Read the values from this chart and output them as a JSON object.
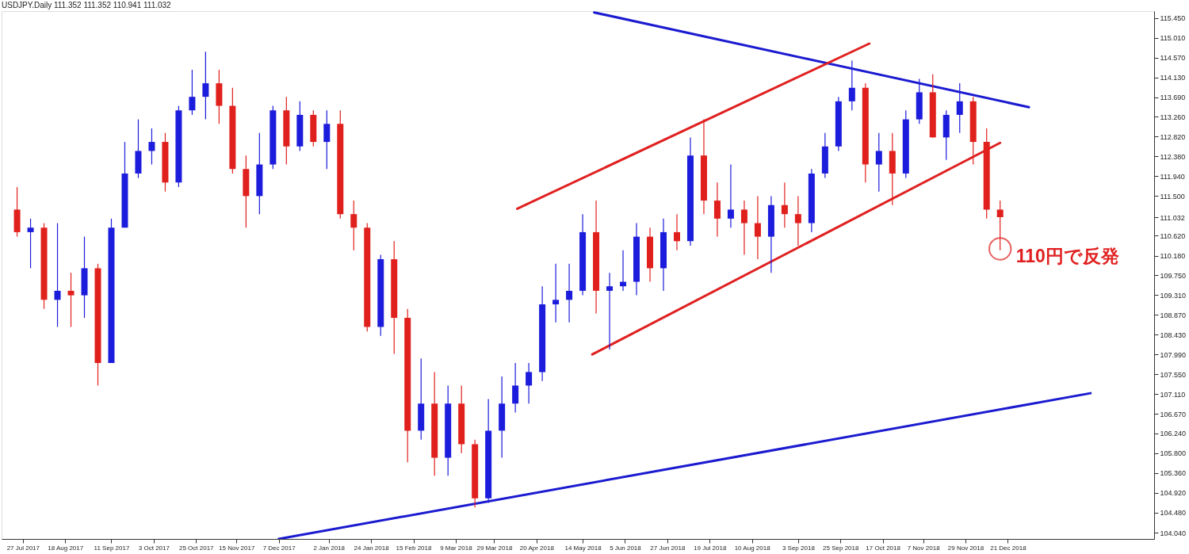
{
  "chart_data": {
    "type": "candlestick",
    "title": "USDJPY.Daily  111.352 111.352 110.941 111.032",
    "x": [
      "2017-07-24",
      "2017-07-31",
      "2017-08-07",
      "2017-08-14",
      "2017-08-21",
      "2017-08-28",
      "2017-09-04",
      "2017-09-11",
      "2017-09-18",
      "2017-09-25",
      "2017-10-02",
      "2017-10-09",
      "2017-10-16",
      "2017-10-23",
      "2017-10-30",
      "2017-11-06",
      "2017-11-13",
      "2017-11-20",
      "2017-11-27",
      "2017-12-04",
      "2017-12-11",
      "2017-12-18",
      "2017-12-25",
      "2018-01-01",
      "2018-01-08",
      "2018-01-15",
      "2018-01-22",
      "2018-01-29",
      "2018-02-05",
      "2018-02-12",
      "2018-02-19",
      "2018-02-26",
      "2018-03-05",
      "2018-03-12",
      "2018-03-19",
      "2018-03-26",
      "2018-04-02",
      "2018-04-09",
      "2018-04-16",
      "2018-04-23",
      "2018-04-30",
      "2018-05-07",
      "2018-05-14",
      "2018-05-21",
      "2018-05-28",
      "2018-06-04",
      "2018-06-11",
      "2018-06-18",
      "2018-06-25",
      "2018-07-02",
      "2018-07-09",
      "2018-07-16",
      "2018-07-23",
      "2018-07-30",
      "2018-08-06",
      "2018-08-13",
      "2018-08-20",
      "2018-08-27",
      "2018-09-03",
      "2018-09-10",
      "2018-09-17",
      "2018-09-24",
      "2018-10-01",
      "2018-10-08",
      "2018-10-15",
      "2018-10-22",
      "2018-10-29",
      "2018-11-05",
      "2018-11-12",
      "2018-11-19",
      "2018-11-26",
      "2018-12-03",
      "2018-12-10",
      "2018-12-17"
    ],
    "ohlc": [
      [
        111.2,
        111.7,
        110.6,
        110.7
      ],
      [
        110.7,
        111.0,
        109.9,
        110.8
      ],
      [
        110.8,
        110.9,
        109.0,
        109.2
      ],
      [
        109.2,
        110.9,
        108.6,
        109.4
      ],
      [
        109.4,
        109.8,
        108.6,
        109.3
      ],
      [
        109.3,
        110.6,
        108.8,
        109.9
      ],
      [
        109.9,
        110.0,
        107.3,
        107.8
      ],
      [
        107.8,
        111.0,
        107.8,
        110.8
      ],
      [
        110.8,
        112.7,
        110.8,
        112.0
      ],
      [
        112.0,
        113.2,
        111.9,
        112.5
      ],
      [
        112.5,
        113.0,
        112.2,
        112.7
      ],
      [
        112.7,
        112.9,
        111.6,
        111.8
      ],
      [
        111.8,
        113.5,
        111.7,
        113.4
      ],
      [
        113.4,
        114.3,
        113.3,
        113.7
      ],
      [
        113.7,
        114.7,
        113.2,
        114.0
      ],
      [
        114.0,
        114.3,
        113.1,
        113.5
      ],
      [
        113.5,
        113.9,
        112.0,
        112.1
      ],
      [
        112.1,
        112.4,
        110.8,
        111.5
      ],
      [
        111.5,
        112.9,
        111.1,
        112.2
      ],
      [
        112.2,
        113.5,
        112.1,
        113.4
      ],
      [
        113.4,
        113.7,
        112.2,
        112.6
      ],
      [
        112.6,
        113.6,
        112.5,
        113.3
      ],
      [
        113.3,
        113.4,
        112.6,
        112.7
      ],
      [
        112.7,
        113.4,
        112.1,
        113.1
      ],
      [
        113.1,
        113.4,
        111.0,
        111.1
      ],
      [
        111.1,
        111.4,
        110.3,
        110.8
      ],
      [
        110.8,
        110.9,
        108.5,
        108.6
      ],
      [
        108.6,
        110.2,
        108.4,
        110.1
      ],
      [
        110.1,
        110.5,
        108.0,
        108.8
      ],
      [
        108.8,
        109.0,
        105.6,
        106.3
      ],
      [
        106.3,
        107.9,
        106.1,
        106.9
      ],
      [
        106.9,
        107.6,
        105.3,
        105.7
      ],
      [
        105.7,
        107.3,
        105.3,
        106.9
      ],
      [
        106.9,
        107.3,
        105.8,
        106.0
      ],
      [
        106.0,
        106.1,
        104.6,
        104.8
      ],
      [
        104.8,
        107.0,
        104.7,
        106.3
      ],
      [
        106.3,
        107.5,
        105.7,
        106.9
      ],
      [
        106.9,
        107.8,
        106.7,
        107.3
      ],
      [
        107.3,
        107.8,
        106.9,
        107.6
      ],
      [
        107.6,
        109.5,
        107.4,
        109.1
      ],
      [
        109.1,
        110.0,
        108.7,
        109.2
      ],
      [
        109.2,
        110.0,
        108.7,
        109.4
      ],
      [
        109.4,
        111.1,
        109.3,
        110.7
      ],
      [
        110.7,
        111.4,
        108.9,
        109.4
      ],
      [
        109.4,
        109.8,
        108.1,
        109.5
      ],
      [
        109.5,
        110.3,
        109.4,
        109.6
      ],
      [
        109.6,
        110.9,
        109.3,
        110.6
      ],
      [
        110.6,
        110.8,
        109.6,
        109.9
      ],
      [
        109.9,
        111.0,
        109.4,
        110.7
      ],
      [
        110.7,
        111.1,
        110.3,
        110.5
      ],
      [
        110.5,
        112.8,
        110.4,
        112.4
      ],
      [
        112.4,
        113.2,
        111.1,
        111.4
      ],
      [
        111.4,
        111.8,
        110.6,
        111.0
      ],
      [
        111.0,
        112.2,
        110.8,
        111.2
      ],
      [
        111.2,
        111.4,
        110.2,
        110.9
      ],
      [
        110.9,
        111.5,
        110.1,
        110.6
      ],
      [
        110.6,
        111.5,
        109.8,
        111.3
      ],
      [
        111.3,
        111.8,
        110.8,
        111.1
      ],
      [
        111.1,
        111.5,
        110.4,
        110.9
      ],
      [
        110.9,
        112.1,
        110.7,
        112.0
      ],
      [
        112.0,
        112.9,
        111.9,
        112.6
      ],
      [
        112.6,
        113.7,
        112.5,
        113.6
      ],
      [
        113.6,
        114.5,
        113.4,
        113.9
      ],
      [
        113.9,
        114.0,
        111.8,
        112.2
      ],
      [
        112.2,
        112.9,
        111.6,
        112.5
      ],
      [
        112.5,
        112.9,
        111.3,
        112.0
      ],
      [
        112.0,
        113.4,
        111.9,
        113.2
      ],
      [
        113.2,
        114.1,
        113.1,
        113.8
      ],
      [
        113.8,
        114.2,
        112.8,
        112.8
      ],
      [
        112.8,
        113.4,
        112.3,
        113.3
      ],
      [
        113.3,
        114.0,
        112.9,
        113.6
      ],
      [
        113.6,
        113.7,
        112.2,
        112.7
      ],
      [
        112.7,
        113.0,
        111.0,
        111.2
      ],
      [
        111.2,
        111.4,
        110.3,
        111.032
      ]
    ],
    "colors": [
      "#e0201c",
      "#1c1cdc",
      "#e0201c",
      "#1c1cdc",
      "#e0201c",
      "#1c1cdc",
      "#e0201c",
      "#1c1cdc",
      "#1c1cdc",
      "#1c1cdc",
      "#1c1cdc",
      "#e0201c",
      "#1c1cdc",
      "#1c1cdc",
      "#1c1cdc",
      "#e0201c",
      "#e0201c",
      "#e0201c",
      "#1c1cdc",
      "#1c1cdc",
      "#e0201c",
      "#1c1cdc",
      "#e0201c",
      "#1c1cdc",
      "#e0201c",
      "#e0201c",
      "#e0201c",
      "#1c1cdc",
      "#e0201c",
      "#e0201c",
      "#1c1cdc",
      "#e0201c",
      "#1c1cdc",
      "#e0201c",
      "#e0201c",
      "#1c1cdc",
      "#1c1cdc",
      "#1c1cdc",
      "#1c1cdc",
      "#1c1cdc",
      "#1c1cdc",
      "#1c1cdc",
      "#1c1cdc",
      "#e0201c",
      "#1c1cdc",
      "#1c1cdc",
      "#1c1cdc",
      "#e0201c",
      "#1c1cdc",
      "#e0201c",
      "#1c1cdc",
      "#e0201c",
      "#e0201c",
      "#1c1cdc",
      "#e0201c",
      "#e0201c",
      "#1c1cdc",
      "#e0201c",
      "#e0201c",
      "#1c1cdc",
      "#1c1cdc",
      "#1c1cdc",
      "#1c1cdc",
      "#e0201c",
      "#1c1cdc",
      "#e0201c",
      "#1c1cdc",
      "#1c1cdc",
      "#e0201c",
      "#1c1cdc",
      "#1c1cdc",
      "#e0201c",
      "#e0201c",
      "#e0201c"
    ],
    "series": [
      {
        "type": "line",
        "color": "#1a1ad0",
        "x": [
          "2018-05-20",
          "2019-01-01"
        ],
        "values": [
          115.57,
          113.47
        ]
      },
      {
        "type": "line",
        "color": "#e02020",
        "x": [
          "2018-04-10",
          "2018-10-10"
        ],
        "values": [
          111.22,
          114.88
        ]
      },
      {
        "type": "line",
        "color": "#e02020",
        "x": [
          "2018-05-19",
          "2018-12-17"
        ],
        "values": [
          107.99,
          112.68
        ]
      },
      {
        "type": "line",
        "color": "#1a1ad0",
        "x": [
          "2017-12-07",
          "2019-02-02"
        ],
        "values": [
          103.9,
          107.13
        ]
      }
    ],
    "annotations": [
      {
        "text": "110円で反発",
        "x": "2018-12-17",
        "y": 110.33
      }
    ],
    "xlim": [
      "2017-07-18",
      "2019-03-05"
    ],
    "xticks": [
      {
        "value": "2017-07-27",
        "label": "27 Jul 2017"
      },
      {
        "value": "2017-08-18",
        "label": "18 Aug 2017"
      },
      {
        "value": "2017-09-11",
        "label": "11 Sep 2017"
      },
      {
        "value": "2017-10-03",
        "label": "3 Oct 2017"
      },
      {
        "value": "2017-10-25",
        "label": "25 Oct 2017"
      },
      {
        "value": "2017-11-15",
        "label": "15 Nov 2017"
      },
      {
        "value": "2017-12-07",
        "label": "7 Dec 2017"
      },
      {
        "value": "2018-01-02",
        "label": "2 Jan 2018"
      },
      {
        "value": "2018-01-24",
        "label": "24 Jan 2018"
      },
      {
        "value": "2018-02-15",
        "label": "15 Feb 2018"
      },
      {
        "value": "2018-03-09",
        "label": "9 Mar 2018"
      },
      {
        "value": "2018-03-29",
        "label": "29 Mar 2018"
      },
      {
        "value": "2018-04-20",
        "label": "20 Apr 2018"
      },
      {
        "value": "2018-05-14",
        "label": "14 May 2018"
      },
      {
        "value": "2018-06-05",
        "label": "5 Jun 2018"
      },
      {
        "value": "2018-06-27",
        "label": "27 Jun 2018"
      },
      {
        "value": "2018-07-19",
        "label": "19 Jul 2018"
      },
      {
        "value": "2018-08-10",
        "label": "10 Aug 2018"
      },
      {
        "value": "2018-09-03",
        "label": "3 Sep 2018"
      },
      {
        "value": "2018-09-25",
        "label": "25 Sep 2018"
      },
      {
        "value": "2018-10-17",
        "label": "17 Oct 2018"
      },
      {
        "value": "2018-11-07",
        "label": "7 Nov 2018"
      },
      {
        "value": "2018-11-29",
        "label": "29 Nov 2018"
      },
      {
        "value": "2018-12-21",
        "label": "21 Dec 2018"
      }
    ],
    "ylim": [
      103.9,
      115.6
    ],
    "yticks": [
      {
        "value": 104.04,
        "label": "104.040"
      },
      {
        "value": 104.48,
        "label": "104.480"
      },
      {
        "value": 104.92,
        "label": "104.920"
      },
      {
        "value": 105.36,
        "label": "105.360"
      },
      {
        "value": 105.8,
        "label": "105.800"
      },
      {
        "value": 106.24,
        "label": "106.240"
      },
      {
        "value": 106.67,
        "label": "106.670"
      },
      {
        "value": 107.11,
        "label": "107.110"
      },
      {
        "value": 107.55,
        "label": "107.550"
      },
      {
        "value": 107.99,
        "label": "107.990"
      },
      {
        "value": 108.43,
        "label": "108.430"
      },
      {
        "value": 108.87,
        "label": "108.870"
      },
      {
        "value": 109.31,
        "label": "109.310"
      },
      {
        "value": 109.75,
        "label": "109.750"
      },
      {
        "value": 110.18,
        "label": "110.180"
      },
      {
        "value": 110.62,
        "label": "110.620"
      },
      {
        "value": 111.032,
        "label": "111.032"
      },
      {
        "value": 111.5,
        "label": "111.500"
      },
      {
        "value": 111.94,
        "label": "111.940"
      },
      {
        "value": 112.38,
        "label": "112.380"
      },
      {
        "value": 112.82,
        "label": "112.820"
      },
      {
        "value": 113.26,
        "label": "113.260"
      },
      {
        "value": 113.69,
        "label": "113.690"
      },
      {
        "value": 114.13,
        "label": "114.130"
      },
      {
        "value": 114.57,
        "label": "114.570"
      },
      {
        "value": 115.01,
        "label": "115.010"
      },
      {
        "value": 115.45,
        "label": "115.450"
      }
    ]
  }
}
